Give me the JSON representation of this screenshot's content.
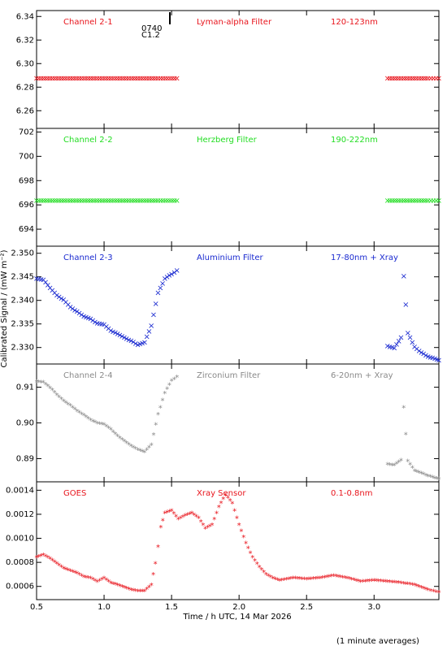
{
  "figure": {
    "ylabel": "Calibrated Signal / (mW m⁻²)",
    "xlabel": "Time / h UTC, 14 Mar 2026",
    "footnote": "(1 minute averages)",
    "event_time": "0740",
    "event_class": "C1.2"
  },
  "chart_data": [
    {
      "type": "scatter",
      "channel": "Channel 2-1",
      "filter": "Lyman-alpha Filter",
      "band": "120-123nm",
      "color": "#e8141c",
      "marker": "×",
      "xlim": [
        0.5,
        3.48
      ],
      "ylim": [
        6.245,
        6.345
      ],
      "yticks": [
        6.26,
        6.28,
        6.3,
        6.32,
        6.34
      ],
      "ytick_labels": [
        "6.26",
        "6.28",
        "6.30",
        "6.32",
        "6.34"
      ],
      "series": [
        {
          "name": "Channel 2-1",
          "x": [
            0.5,
            0.6,
            0.7,
            0.8,
            0.9,
            1.0,
            1.1,
            1.2,
            1.3,
            1.4,
            1.54,
            3.1,
            3.2,
            3.3,
            3.4,
            3.48
          ],
          "y": [
            6.287,
            6.287,
            6.287,
            6.287,
            6.287,
            6.287,
            6.287,
            6.287,
            6.287,
            6.287,
            6.287,
            6.287,
            6.287,
            6.287,
            6.287,
            6.287
          ]
        }
      ]
    },
    {
      "type": "scatter",
      "channel": "Channel 2-2",
      "filter": "Herzberg Filter",
      "band": "190-222nm",
      "color": "#22dd22",
      "marker": "×",
      "xlim": [
        0.5,
        3.48
      ],
      "ylim": [
        692.6,
        702.3
      ],
      "yticks": [
        694,
        696,
        698,
        700,
        702
      ],
      "ytick_labels": [
        "694",
        "696",
        "698",
        "700",
        "702"
      ],
      "series": [
        {
          "name": "Channel 2-2",
          "x": [
            0.5,
            0.6,
            0.7,
            0.8,
            0.9,
            1.0,
            1.1,
            1.2,
            1.3,
            1.4,
            1.54,
            3.1,
            3.2,
            3.3,
            3.4,
            3.48
          ],
          "y": [
            696.3,
            696.3,
            696.3,
            696.3,
            696.3,
            696.3,
            696.3,
            696.3,
            696.3,
            696.3,
            696.3,
            696.3,
            696.3,
            696.3,
            696.3,
            696.3
          ]
        }
      ]
    },
    {
      "type": "scatter",
      "channel": "Channel 2-3",
      "filter": "Aluminium Filter",
      "band": "17-80nm + Xray",
      "color": "#1a2ad0",
      "marker": "×",
      "xlim": [
        0.5,
        3.48
      ],
      "ylim": [
        2.3265,
        2.3515
      ],
      "yticks": [
        2.33,
        2.335,
        2.34,
        2.345,
        2.35
      ],
      "ytick_labels": [
        "2.330",
        "2.335",
        "2.340",
        "2.345",
        "2.350"
      ],
      "series": [
        {
          "name": "Channel 2-3",
          "x": [
            0.5,
            0.55,
            0.6,
            0.65,
            0.7,
            0.75,
            0.8,
            0.85,
            0.9,
            0.95,
            1.0,
            1.05,
            1.1,
            1.15,
            1.2,
            1.25,
            1.3,
            1.35,
            1.4,
            1.45,
            1.5,
            1.54,
            3.1,
            3.15,
            3.2,
            3.22,
            3.25,
            3.3,
            3.35,
            3.4,
            3.45,
            3.48
          ],
          "y": [
            2.3445,
            2.3443,
            2.3425,
            2.341,
            2.34,
            2.3385,
            2.3375,
            2.3365,
            2.336,
            2.335,
            2.3348,
            2.3335,
            2.3328,
            2.332,
            2.3313,
            2.3305,
            2.331,
            2.3345,
            2.3415,
            2.3445,
            2.3455,
            2.3462,
            2.3302,
            2.3298,
            2.332,
            2.345,
            2.333,
            2.33,
            2.3288,
            2.328,
            2.3275,
            2.3272
          ]
        }
      ]
    },
    {
      "type": "scatter",
      "channel": "Channel 2-4",
      "filter": "Zirconium Filter",
      "band": "6-20nm + Xray",
      "color": "#8a8a8a",
      "marker": "*",
      "xlim": [
        0.5,
        3.48
      ],
      "ylim": [
        0.8835,
        0.9165
      ],
      "yticks": [
        0.89,
        0.9,
        0.91
      ],
      "ytick_labels": [
        "0.89",
        "0.90",
        "0.91"
      ],
      "series": [
        {
          "name": "Channel 2-4",
          "x": [
            0.5,
            0.55,
            0.6,
            0.65,
            0.7,
            0.75,
            0.8,
            0.85,
            0.9,
            0.95,
            1.0,
            1.05,
            1.1,
            1.15,
            1.2,
            1.25,
            1.3,
            1.35,
            1.4,
            1.45,
            1.5,
            1.54,
            3.1,
            3.15,
            3.2,
            3.22,
            3.25,
            3.3,
            3.35,
            3.4,
            3.45,
            3.48
          ],
          "y": [
            0.9112,
            0.911,
            0.9095,
            0.9075,
            0.9058,
            0.9045,
            0.903,
            0.9018,
            0.9005,
            0.8995,
            0.8992,
            0.8978,
            0.896,
            0.8945,
            0.8932,
            0.8922,
            0.8915,
            0.8935,
            0.902,
            0.908,
            0.9115,
            0.9125,
            0.888,
            0.8878,
            0.8892,
            0.904,
            0.889,
            0.8862,
            0.8855,
            0.8848,
            0.8842,
            0.884
          ]
        }
      ]
    },
    {
      "type": "scatter",
      "channel": "GOES",
      "filter": "Xray Sensor",
      "band": "0.1-0.8nm",
      "color": "#e8141c",
      "marker": "*",
      "xlim": [
        0.5,
        3.48
      ],
      "ylim": [
        0.00049,
        0.00147
      ],
      "yticks": [
        0.0006,
        0.0008,
        0.001,
        0.0012,
        0.0014
      ],
      "ytick_labels": [
        "0.0006",
        "0.0008",
        "0.0010",
        "0.0012",
        "0.0014"
      ],
      "series": [
        {
          "name": "GOES",
          "x": [
            0.5,
            0.55,
            0.6,
            0.65,
            0.7,
            0.75,
            0.8,
            0.85,
            0.9,
            0.95,
            1.0,
            1.05,
            1.1,
            1.15,
            1.2,
            1.25,
            1.3,
            1.35,
            1.38,
            1.4,
            1.42,
            1.45,
            1.5,
            1.55,
            1.6,
            1.65,
            1.7,
            1.75,
            1.8,
            1.85,
            1.9,
            1.95,
            2.0,
            2.05,
            2.1,
            2.15,
            2.2,
            2.25,
            2.3,
            2.4,
            2.5,
            2.6,
            2.7,
            2.8,
            2.9,
            3.0,
            3.1,
            3.2,
            3.3,
            3.4,
            3.48
          ],
          "y": [
            0.00083,
            0.00085,
            0.00082,
            0.00078,
            0.00074,
            0.00072,
            0.0007,
            0.00067,
            0.00066,
            0.00063,
            0.00066,
            0.00062,
            0.0006,
            0.00058,
            0.00056,
            0.00055,
            0.00055,
            0.0006,
            0.00078,
            0.00092,
            0.00108,
            0.0012,
            0.00122,
            0.00115,
            0.00118,
            0.0012,
            0.00116,
            0.00107,
            0.0011,
            0.00125,
            0.00135,
            0.00128,
            0.0011,
            0.00095,
            0.00083,
            0.00075,
            0.00069,
            0.00066,
            0.00064,
            0.00066,
            0.00065,
            0.00066,
            0.00068,
            0.00066,
            0.00063,
            0.00064,
            0.00063,
            0.00062,
            0.0006,
            0.00056,
            0.00054
          ]
        }
      ]
    }
  ],
  "x_axis": {
    "ticks": [
      0.5,
      1.0,
      1.5,
      2.0,
      2.5,
      3.0
    ],
    "tick_labels": [
      "0.5",
      "1.0",
      "1.5",
      "2.0",
      "2.5",
      "3.0"
    ],
    "xlim": [
      0.5,
      3.48
    ]
  }
}
